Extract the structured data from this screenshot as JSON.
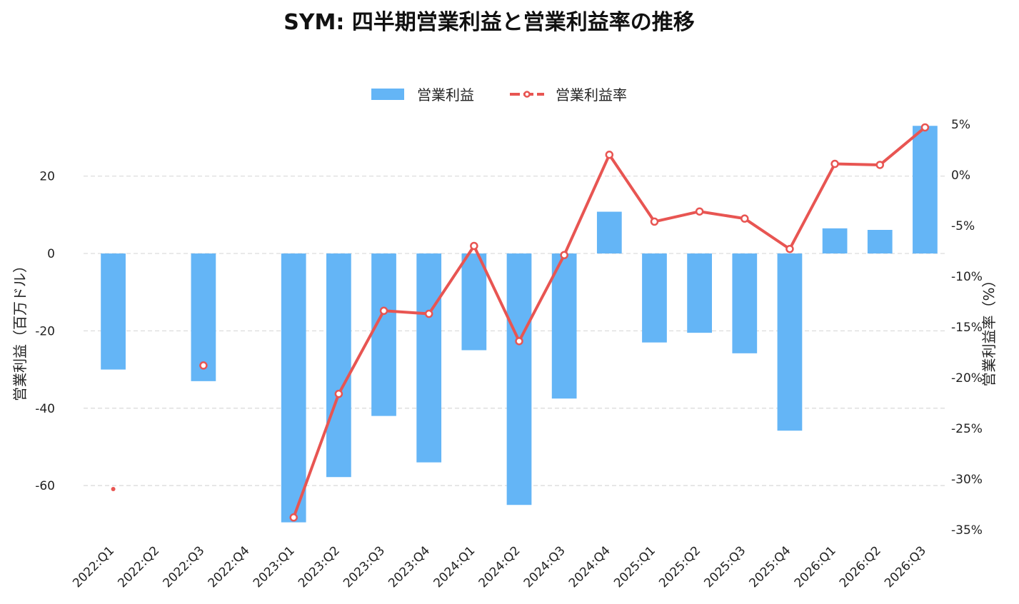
{
  "chart_data": {
    "type": "bar+line",
    "title": "SYM: 四半期営業利益と営業利益率の推移",
    "categories": [
      "2022:Q1",
      "2022:Q2",
      "2022:Q3",
      "2022:Q4",
      "2023:Q1",
      "2023:Q2",
      "2023:Q3",
      "2023:Q4",
      "2024:Q1",
      "2024:Q2",
      "2024:Q3",
      "2024:Q4",
      "2025:Q1",
      "2025:Q2",
      "2025:Q3",
      "2025:Q4",
      "2026:Q1",
      "2026:Q2",
      "2026:Q3"
    ],
    "series": [
      {
        "name": "営業利益",
        "type": "bar",
        "axis": "left",
        "color": "#64b5f6",
        "values": [
          -30,
          null,
          -33,
          null,
          -69.5,
          -57.8,
          -42,
          -54,
          -25,
          -65,
          -37.5,
          10.8,
          -23,
          -20.5,
          -25.8,
          -45.8,
          6.5,
          6.1,
          33
        ]
      },
      {
        "name": "営業利益率",
        "type": "line",
        "axis": "right",
        "color": "#e85552",
        "values": [
          -31,
          null,
          -18.8,
          null,
          -33.8,
          -21.6,
          -13.4,
          -13.7,
          -7,
          -16.4,
          -7.9,
          2,
          -4.6,
          -3.6,
          -4.3,
          -7.3,
          1.1,
          1,
          4.7
        ]
      }
    ],
    "ylabel": "営業利益（百万ドル）",
    "ylabel_right": "営業利益率（%）",
    "ylim": [
      -74,
      36
    ],
    "ylim_right": [
      -36,
      6
    ],
    "yticks": [
      -60,
      -40,
      -20,
      0,
      20
    ],
    "yticks_right": [
      -35,
      -30,
      -25,
      -20,
      -15,
      -10,
      -5,
      0,
      5
    ],
    "ytick_labels": [
      "-60",
      "-40",
      "-20",
      "0",
      "20"
    ],
    "ytick_labels_right": [
      "-35%",
      "-30%",
      "-25%",
      "-20%",
      "-15%",
      "-10%",
      "-5%",
      "0%",
      "5%"
    ],
    "grid": true,
    "legend_position": "top-center"
  }
}
